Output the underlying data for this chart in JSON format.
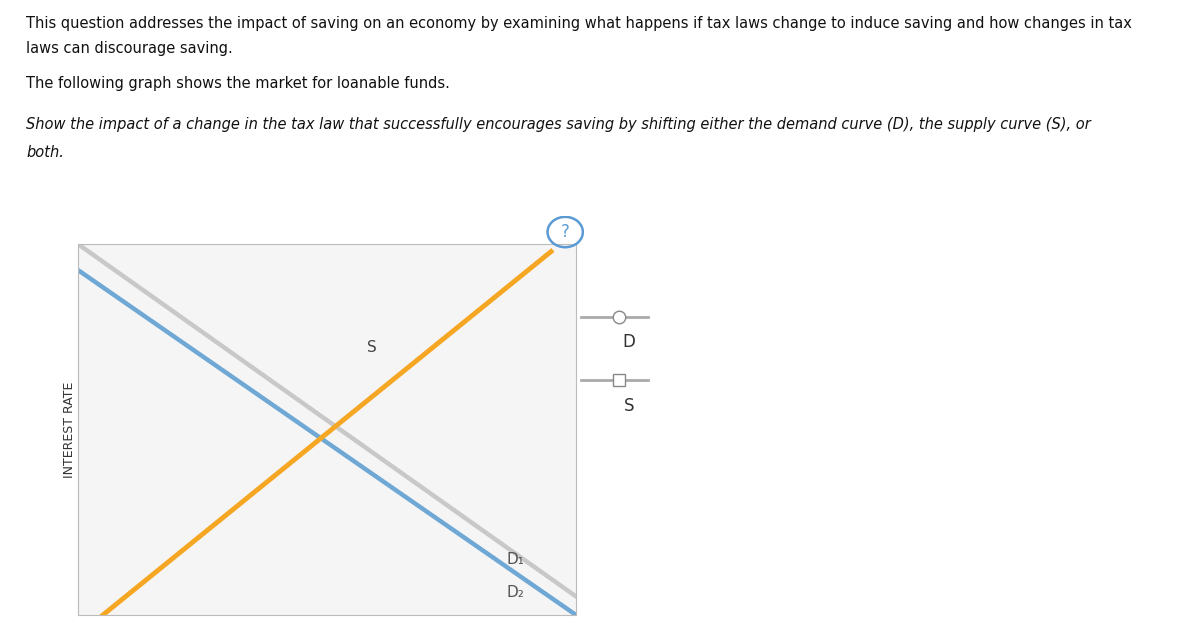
{
  "ylabel": "INTEREST RATE",
  "curve_S_color": "#f5a623",
  "curve_D1_color": "#c8c8c8",
  "curve_D2_color": "#6fa8d5",
  "curve_S_lw": 3.5,
  "curve_D1_lw": 3.2,
  "curve_D2_lw": 3.2,
  "legend_D_label": "D",
  "legend_S_label": "S",
  "question_mark_color": "#5b9bd5",
  "bg_color": "#ffffff",
  "box_bg": "#f5f5f5",
  "box_border": "#bbbbbb",
  "S_label": "S",
  "D1_label": "D₁",
  "D2_label": "D₂",
  "text1": "This question addresses the impact of saving on an economy by examining what happens if tax laws change to induce saving and how changes in tax",
  "text2": "laws can discourage saving.",
  "text3": "The following graph shows the market for loanable funds.",
  "text4": "Show the impact of a change in the tax law that successfully encourages saving by shifting either the demand curve (D), the supply curve (S), or",
  "text5": "both."
}
